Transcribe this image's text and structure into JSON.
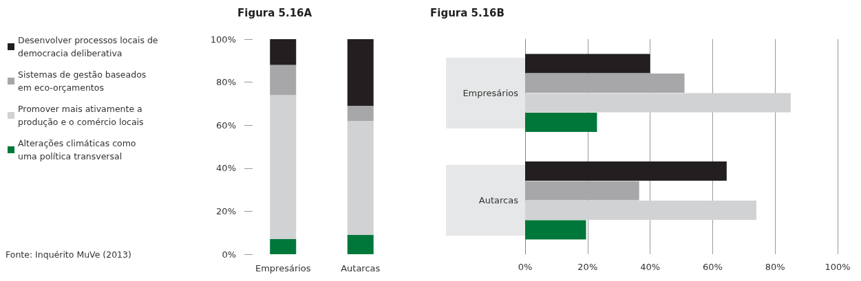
{
  "chart_data": [
    {
      "type": "bar",
      "title": "Figura 5.16A",
      "stacked": true,
      "categories": [
        "Empresários",
        "Autarcas"
      ],
      "series": [
        {
          "name": "Alterações climáticas como uma política transversal",
          "color": "#00773a",
          "values": [
            7,
            9
          ]
        },
        {
          "name": "Promover mais ativamente a produção e o comércio locais",
          "color": "#d1d2d4",
          "values": [
            67,
            53
          ]
        },
        {
          "name": "Sistemas de gestão baseados em eco-orçamentos",
          "color": "#a7a7a9",
          "values": [
            14,
            7
          ]
        },
        {
          "name": "Desenvolver processos locais de democracia deliberativa",
          "color": "#231f20",
          "values": [
            12,
            31
          ]
        }
      ],
      "ylim": [
        0,
        100
      ],
      "yticks": [
        {
          "value": 0,
          "label": "0%"
        },
        {
          "value": 20,
          "label": "20%"
        },
        {
          "value": 40,
          "label": "40%"
        },
        {
          "value": 60,
          "label": "60%"
        },
        {
          "value": 80,
          "label": "80%"
        },
        {
          "value": 100,
          "label": "100%"
        }
      ],
      "grid": false,
      "legend": "left",
      "annotations": [
        "Fonte: Inquérito MuVe (2013)"
      ]
    },
    {
      "type": "bar",
      "title": "Figura 5.16B",
      "orientation": "horizontal",
      "categories": [
        "Empresários",
        "Autarcas"
      ],
      "series": [
        {
          "color": "#231f20",
          "values": [
            40,
            64.5
          ]
        },
        {
          "color": "#a7a7a9",
          "values": [
            51,
            36.5
          ]
        },
        {
          "color": "#d1d2d4",
          "values": [
            85,
            74
          ]
        },
        {
          "color": "#00773a",
          "values": [
            23,
            19.5
          ]
        }
      ],
      "xlim": [
        0,
        100
      ],
      "xticks": [
        {
          "value": 0,
          "label": "0%"
        },
        {
          "value": 20,
          "label": "20%"
        },
        {
          "value": 40,
          "label": "40%"
        },
        {
          "value": 60,
          "label": "60%"
        },
        {
          "value": 80,
          "label": "80%"
        },
        {
          "value": 100,
          "label": "100%"
        }
      ],
      "grid": "x",
      "legend": false
    }
  ]
}
